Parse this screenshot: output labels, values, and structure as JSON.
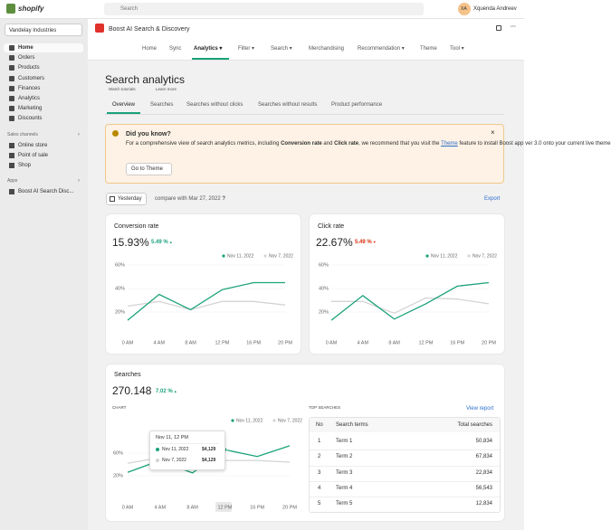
{
  "topbar": {
    "logo": "shopify",
    "search": "Search",
    "avatar": "XA",
    "user": "Xquenda Andreev"
  },
  "sidebar": {
    "store": "Vandelay Industries",
    "nav": [
      "Home",
      "Orders",
      "Products",
      "Customers",
      "Finances",
      "Analytics",
      "Marketing",
      "Discounts"
    ],
    "sales_channels": {
      "title": "Sales channels",
      "items": [
        "Online store",
        "Point of sale",
        "Shop"
      ]
    },
    "apps": {
      "title": "Apps",
      "items": [
        "Boost AI Search Disc..."
      ]
    }
  },
  "app": {
    "title": "Boost AI Search & Discovery",
    "tabs": [
      "Home",
      "Sync",
      "Analytics",
      "Filter",
      "Search",
      "Merchandising",
      "Recommendation",
      "Theme",
      "Tool"
    ]
  },
  "page": {
    "title": "Search analytics",
    "links": [
      "Watch tutorials",
      "Learn more"
    ],
    "tabs": [
      "Overview",
      "Searches",
      "Searches without clicks",
      "Searches without results",
      "Product performance"
    ]
  },
  "banner": {
    "title": "Did you know?",
    "text": [
      "For a comprehensive view of search analytics metrics, including ",
      "Conversion rate",
      " and ",
      "Click rate",
      ", we recommend that you visit the ",
      "Theme",
      " feature to install Boost app ver 3.0 onto your current live theme"
    ],
    "button": "Go to Theme"
  },
  "controls": {
    "date": "Yesterday",
    "compare": "compare with Mar 27, 2022",
    "export": "Export"
  },
  "cards": [
    {
      "title": "Conversion rate",
      "value": "15.93%",
      "change": "5.49 %",
      "chart": {
        "type": "line",
        "categories": [
          "0 AM",
          "4 AM",
          "8 AM",
          "12 PM",
          "16 PM",
          "20 PM"
        ],
        "series": [
          {
            "name": "Nov 11, 2022",
            "color": "#1aa27a",
            "values": [
              13,
              35,
              22,
              39,
              45,
              45
            ]
          },
          {
            "name": "Nov 7, 2022",
            "color": "#d4d4d4",
            "values": [
              25,
              29,
              22,
              29,
              29,
              26
            ]
          }
        ],
        "ylim": [
          0,
          60
        ],
        "yticks": [
          {
            "value": 20,
            "label": "20%"
          },
          {
            "value": 40,
            "label": "40%"
          },
          {
            "value": 60,
            "label": "60%"
          }
        ]
      }
    },
    {
      "title": "Click rate",
      "value": "22.67%",
      "change": "5.49 %",
      "chart": {
        "type": "line",
        "categories": [
          "0 AM",
          "4 AM",
          "8 AM",
          "12 PM",
          "16 PM",
          "20 PM"
        ],
        "series": [
          {
            "name": "Nov 11, 2022",
            "color": "#1aa27a",
            "values": [
              13,
              34,
              14,
              27,
              42,
              45
            ]
          },
          {
            "name": "Nov 7, 2022",
            "color": "#d4d4d4",
            "values": [
              29,
              29,
              19,
              32,
              31,
              27
            ]
          }
        ],
        "ylim": [
          0,
          60
        ],
        "yticks": [
          {
            "value": 20,
            "label": "20%"
          },
          {
            "value": 40,
            "label": "40%"
          },
          {
            "value": 60,
            "label": "60%"
          }
        ]
      }
    }
  ],
  "searches": {
    "title": "Searches",
    "value": "270.148",
    "change": "7.02 %",
    "chart_label": "CHART",
    "chart": {
      "type": "line",
      "categories": [
        "0 AM",
        "4 AM",
        "8 AM",
        "12 PM",
        "16 PM",
        "20 PM"
      ],
      "series": [
        {
          "name": "Nov 11, 2022",
          "color": "#1aa27a",
          "values": [
            26,
            47,
            25,
            66,
            54,
            73
          ]
        },
        {
          "name": "Nov 7, 2022",
          "color": "#d4d4d4",
          "values": [
            42,
            52,
            34,
            47,
            47,
            44
          ]
        }
      ],
      "ylim": [
        0,
        100
      ],
      "yticks": [
        {
          "value": 20,
          "label": "20%"
        },
        {
          "value": 60,
          "label": "60%"
        }
      ]
    },
    "tooltip": {
      "title": "Nov 11, 12 PM",
      "rows": [
        {
          "name": "Nov 11, 2022",
          "value": "$4,129"
        },
        {
          "name": "Nov 7, 2022",
          "value": "$4,129"
        }
      ]
    },
    "top": {
      "title": "TOP SEARCHES",
      "link": "View report",
      "header": [
        "No",
        "Search terms",
        "Total searches"
      ],
      "rows": [
        [
          "1",
          "Term 1",
          "50,834"
        ],
        [
          "2",
          "Term 2",
          "67,834"
        ],
        [
          "3",
          "Term 3",
          "22,834"
        ],
        [
          "4",
          "Term 4",
          "56,543"
        ],
        [
          "5",
          "Term 5",
          "12,834"
        ]
      ]
    }
  }
}
